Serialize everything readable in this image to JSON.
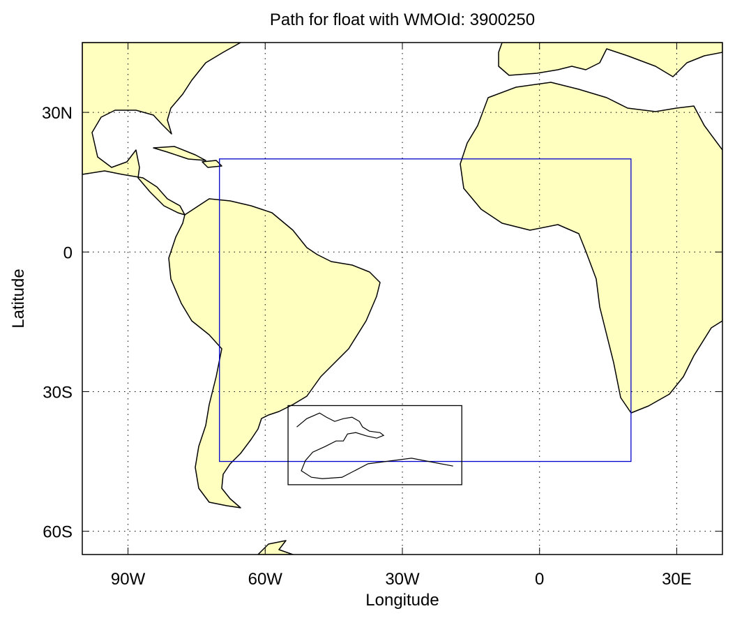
{
  "chart_data": {
    "type": "map",
    "title": "Path for float with WMOId: 3900250",
    "xlabel": "Longitude",
    "ylabel": "Latitude",
    "xlim": [
      -100,
      40
    ],
    "ylim": [
      -65,
      45
    ],
    "xticks": [
      {
        "value": -90,
        "label": "90W"
      },
      {
        "value": -60,
        "label": "60W"
      },
      {
        "value": -30,
        "label": "30W"
      },
      0,
      {
        "value": 30,
        "label": "30E"
      }
    ],
    "yticks": [
      {
        "value": 30,
        "label": "30N"
      },
      0,
      {
        "value": -30,
        "label": "30S"
      },
      {
        "value": -60,
        "label": "60S"
      }
    ],
    "grid": true,
    "regions": [
      {
        "xlim": [
          -70,
          20
        ],
        "ylim": [
          -45,
          20
        ],
        "color": "#0000cc"
      },
      {
        "xlim": [
          -55,
          -17
        ],
        "ylim": [
          -50,
          -33
        ],
        "color": "#000000"
      }
    ],
    "color": "#000000",
    "x": [
      -53.1,
      -50.9,
      -48.1,
      -46.6,
      -44.8,
      -42.9,
      -41.0,
      -39.4,
      -38.7,
      -37.2,
      -34.9,
      -34.1,
      -35.6,
      -37.9,
      -40.2,
      -42.0,
      -42.9,
      -44.5,
      -46.9,
      -49.6,
      -51.2,
      -52.1,
      -49.9,
      -47.5,
      -43.2,
      -37.5,
      -28.0,
      -18.9
    ],
    "values": [
      -37.6,
      -35.8,
      -34.6,
      -35.5,
      -36.4,
      -35.8,
      -35.5,
      -36.4,
      -37.6,
      -38.5,
      -38.8,
      -39.4,
      -40.0,
      -39.5,
      -38.8,
      -39.1,
      -40.6,
      -40.6,
      -41.8,
      -43.0,
      -44.8,
      -47.0,
      -48.4,
      -48.7,
      -48.4,
      -45.5,
      -44.3,
      -46.0
    ]
  }
}
